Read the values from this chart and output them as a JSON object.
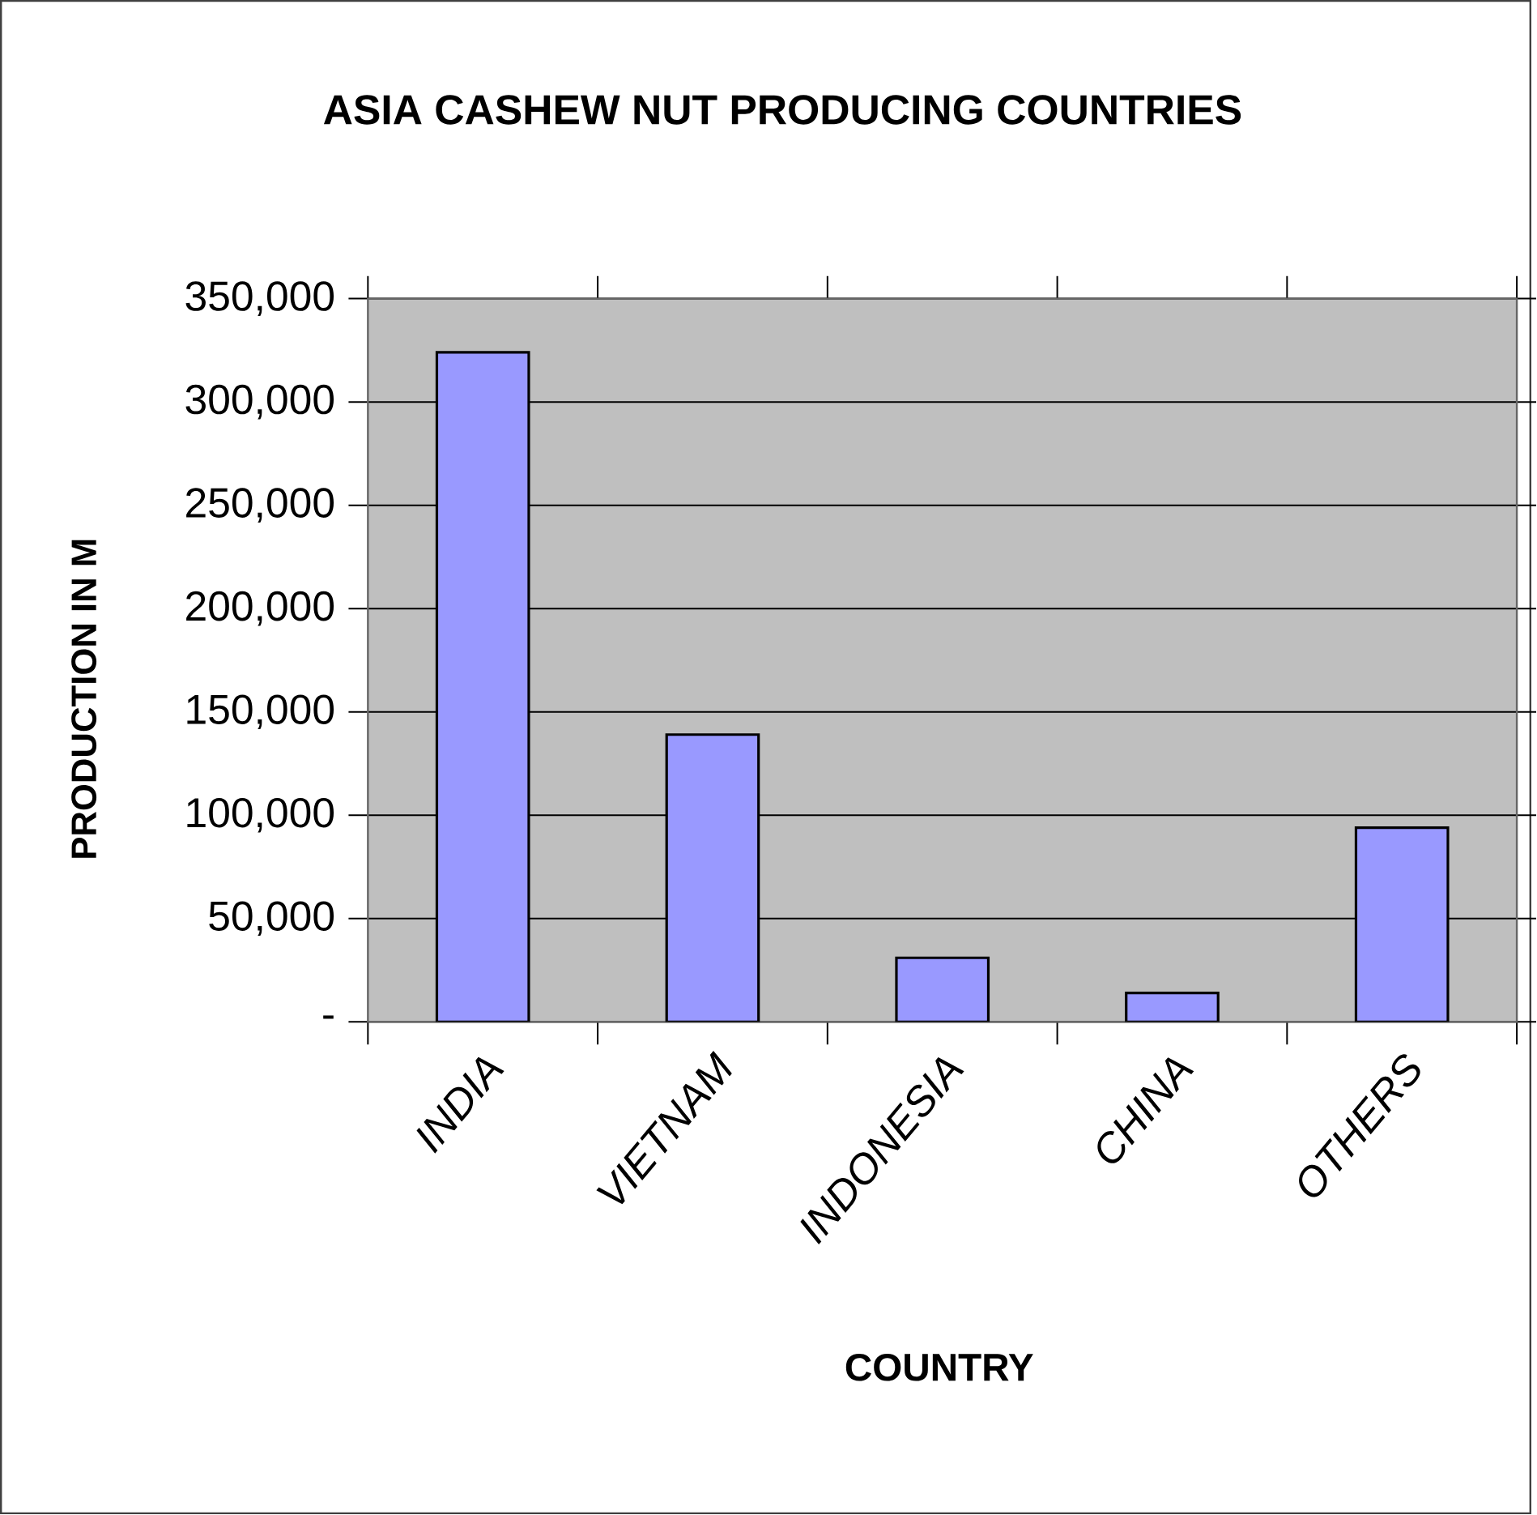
{
  "chart_data": {
    "type": "bar",
    "title": "ASIA CASHEW NUT PRODUCING COUNTRIES",
    "xlabel": "COUNTRY",
    "ylabel": "PRODUCTION IN M",
    "categories": [
      "INDIA",
      "VIETNAM",
      "INDONESIA",
      "CHINA",
      "OTHERS"
    ],
    "values": [
      324000,
      139000,
      31000,
      14000,
      94000
    ],
    "color": "#9999ff",
    "ylim": [
      0,
      350000
    ],
    "yticks": [
      {
        "value": 0,
        "label": "-"
      },
      {
        "value": 50000,
        "label": "50,000"
      },
      {
        "value": 100000,
        "label": "100,000"
      },
      {
        "value": 150000,
        "label": "150,000"
      },
      {
        "value": 200000,
        "label": "200,000"
      },
      {
        "value": 250000,
        "label": "250,000"
      },
      {
        "value": 300000,
        "label": "300,000"
      },
      {
        "value": 350000,
        "label": "350,000"
      }
    ],
    "grid": "y"
  }
}
